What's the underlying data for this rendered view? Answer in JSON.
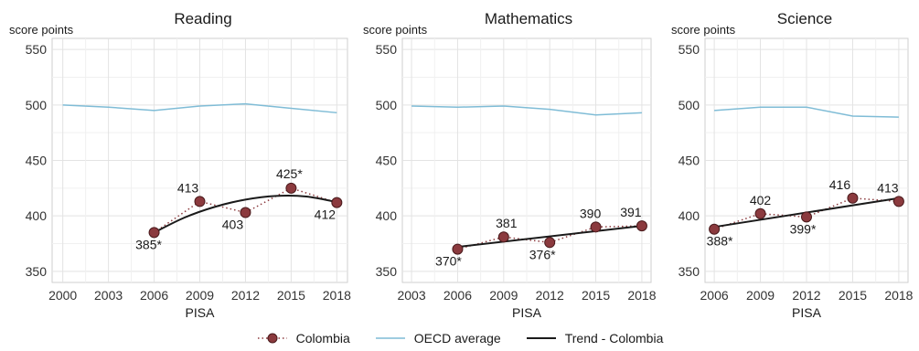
{
  "chart_data": [
    {
      "type": "line",
      "title": "Reading",
      "ylabel": "score points",
      "xlabel": "PISA",
      "ylim": [
        340,
        560
      ],
      "yticks": [
        350,
        400,
        450,
        500,
        550
      ],
      "xticks": [
        2000,
        2003,
        2006,
        2009,
        2012,
        2015,
        2018
      ],
      "xlim": [
        1999.3,
        2018.7
      ],
      "grid": true,
      "series": [
        {
          "name": "Colombia",
          "x": [
            2006,
            2009,
            2012,
            2015,
            2018
          ],
          "y": [
            385,
            413,
            403,
            425,
            412
          ],
          "labels": [
            "385*",
            "413",
            "403",
            "425*",
            "412"
          ]
        },
        {
          "name": "OECD average",
          "x": [
            2000,
            2003,
            2006,
            2009,
            2012,
            2015,
            2018
          ],
          "y": [
            500,
            498,
            495,
            499,
            501,
            497,
            493
          ]
        },
        {
          "name": "Trend - Colombia",
          "x": [
            2006,
            2008,
            2010,
            2012,
            2014,
            2016,
            2018
          ],
          "y": [
            385,
            398.5,
            408.2,
            414.7,
            418,
            417.5,
            412.4
          ]
        }
      ]
    },
    {
      "type": "line",
      "title": "Mathematics",
      "ylabel": "score points",
      "xlabel": "PISA",
      "ylim": [
        340,
        560
      ],
      "yticks": [
        350,
        400,
        450,
        500,
        550
      ],
      "xticks": [
        2003,
        2006,
        2009,
        2012,
        2015,
        2018
      ],
      "xlim": [
        2002.4,
        2018.6
      ],
      "grid": true,
      "series": [
        {
          "name": "Colombia",
          "x": [
            2006,
            2009,
            2012,
            2015,
            2018
          ],
          "y": [
            370,
            381,
            376,
            390,
            391
          ],
          "labels": [
            "370*",
            "381",
            "376*",
            "390",
            "391"
          ]
        },
        {
          "name": "OECD average",
          "x": [
            2003,
            2006,
            2009,
            2012,
            2015,
            2018
          ],
          "y": [
            499,
            498,
            499,
            496,
            491,
            493
          ]
        },
        {
          "name": "Trend - Colombia",
          "x": [
            2006,
            2018
          ],
          "y": [
            372,
            391
          ]
        }
      ]
    },
    {
      "type": "line",
      "title": "Science",
      "ylabel": "score points",
      "xlabel": "PISA",
      "ylim": [
        340,
        560
      ],
      "yticks": [
        350,
        400,
        450,
        500,
        550
      ],
      "xticks": [
        2006,
        2009,
        2012,
        2015,
        2018
      ],
      "xlim": [
        2005.4,
        2018.6
      ],
      "grid": true,
      "series": [
        {
          "name": "Colombia",
          "x": [
            2006,
            2009,
            2012,
            2015,
            2018
          ],
          "y": [
            388,
            402,
            399,
            416,
            413
          ],
          "labels": [
            "388*",
            "402",
            "399*",
            "416",
            "413"
          ]
        },
        {
          "name": "OECD average",
          "x": [
            2006,
            2009,
            2012,
            2015,
            2018
          ],
          "y": [
            495,
            498,
            498,
            490,
            489
          ]
        },
        {
          "name": "Trend - Colombia",
          "x": [
            2006,
            2018
          ],
          "y": [
            390,
            416
          ]
        }
      ]
    }
  ],
  "legend": {
    "placement": "bottom",
    "items": [
      {
        "name": "Colombia",
        "style": "dotted-marker"
      },
      {
        "name": "OECD average",
        "style": "line"
      },
      {
        "name": "Trend - Colombia",
        "style": "line"
      }
    ]
  },
  "colors": {
    "colombia": "#8b3a3e",
    "colombia_edge": "#4a1a1c",
    "oecd": "#7fbcd6",
    "trend": "#1a1a1a",
    "grid": "#e3e3e3",
    "axis": "#666666"
  }
}
